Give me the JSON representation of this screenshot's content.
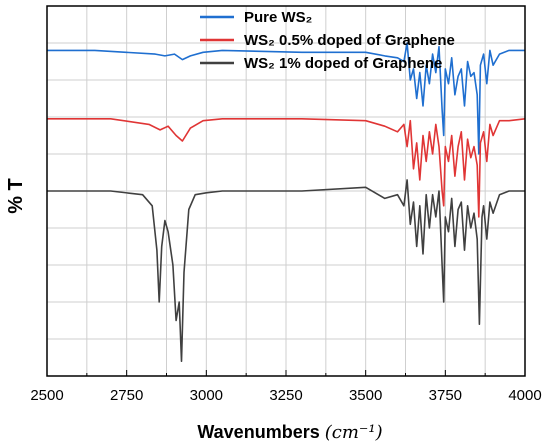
{
  "chart_data": {
    "type": "line",
    "xlabel": "Wavenumbers",
    "xlabel_unit": "(cm⁻¹)",
    "ylabel": "% T",
    "xlim": [
      2500,
      4000
    ],
    "xticks": [
      2500,
      2750,
      3000,
      3250,
      3500,
      3750,
      4000
    ],
    "ylim": [
      0,
      10
    ],
    "grid": true,
    "legend": "top-right",
    "y_tick_labels_shown": false,
    "series": [
      {
        "name": "Pure WS₂",
        "color": "#1f6fd0",
        "x": [
          2500,
          2650,
          2840,
          2870,
          2900,
          2925,
          2950,
          2990,
          3050,
          3300,
          3500,
          3560,
          3600,
          3620,
          3630,
          3640,
          3650,
          3660,
          3670,
          3680,
          3690,
          3700,
          3710,
          3720,
          3730,
          3740,
          3745,
          3750,
          3760,
          3770,
          3780,
          3790,
          3800,
          3810,
          3820,
          3830,
          3840,
          3850,
          3855,
          3860,
          3870,
          3880,
          3890,
          3900,
          3920,
          3950,
          4000
        ],
        "y": [
          8.8,
          8.8,
          8.7,
          8.65,
          8.7,
          8.55,
          8.65,
          8.75,
          8.8,
          8.75,
          8.75,
          8.65,
          8.6,
          8.5,
          9.0,
          8.0,
          8.3,
          7.5,
          8.2,
          7.3,
          8.4,
          7.9,
          8.7,
          8.2,
          8.9,
          7.2,
          6.5,
          8.3,
          7.9,
          8.6,
          7.6,
          8.1,
          8.3,
          7.3,
          8.5,
          8.1,
          8.2,
          7.6,
          6.0,
          8.4,
          8.7,
          7.9,
          8.8,
          8.4,
          8.7,
          8.8,
          8.8
        ]
      },
      {
        "name": "WS₂ 0.5% doped  of Graphene",
        "color": "#e03535",
        "x": [
          2500,
          2700,
          2820,
          2855,
          2880,
          2905,
          2925,
          2950,
          2990,
          3050,
          3300,
          3500,
          3560,
          3600,
          3620,
          3630,
          3640,
          3650,
          3660,
          3670,
          3680,
          3690,
          3700,
          3710,
          3720,
          3730,
          3740,
          3745,
          3750,
          3760,
          3770,
          3780,
          3790,
          3800,
          3810,
          3820,
          3830,
          3840,
          3850,
          3855,
          3860,
          3870,
          3880,
          3890,
          3900,
          3920,
          3950,
          4000
        ],
        "y": [
          6.95,
          6.95,
          6.8,
          6.65,
          6.75,
          6.5,
          6.35,
          6.7,
          6.9,
          6.95,
          6.95,
          6.9,
          6.75,
          6.6,
          6.8,
          6.2,
          6.9,
          5.6,
          6.3,
          5.3,
          6.5,
          5.8,
          6.6,
          6.0,
          6.8,
          6.2,
          5.0,
          4.6,
          6.2,
          5.8,
          6.5,
          5.4,
          6.2,
          6.6,
          5.3,
          6.4,
          5.9,
          6.2,
          5.7,
          4.3,
          6.3,
          6.6,
          5.8,
          6.8,
          6.5,
          6.9,
          6.9,
          6.95
        ]
      },
      {
        "name": "WS₂ 1% doped  of Graphene",
        "color": "#404040",
        "x": [
          2500,
          2700,
          2800,
          2830,
          2845,
          2852,
          2860,
          2870,
          2880,
          2895,
          2905,
          2915,
          2922,
          2930,
          2945,
          2965,
          3000,
          3050,
          3300,
          3500,
          3560,
          3600,
          3620,
          3630,
          3640,
          3650,
          3660,
          3670,
          3680,
          3690,
          3700,
          3710,
          3720,
          3730,
          3740,
          3745,
          3750,
          3760,
          3770,
          3780,
          3790,
          3800,
          3810,
          3820,
          3830,
          3840,
          3850,
          3857,
          3865,
          3870,
          3880,
          3890,
          3900,
          3920,
          3950,
          4000
        ],
        "y": [
          5.0,
          5.0,
          4.9,
          4.6,
          3.4,
          2.0,
          3.5,
          4.2,
          3.9,
          3.0,
          1.5,
          2.0,
          0.4,
          2.8,
          4.5,
          4.9,
          4.95,
          5.0,
          5.0,
          5.1,
          4.8,
          4.9,
          4.6,
          5.3,
          4.1,
          4.7,
          3.5,
          4.6,
          3.3,
          4.9,
          4.0,
          4.9,
          4.3,
          5.0,
          3.0,
          2.0,
          4.3,
          3.9,
          4.8,
          3.5,
          4.5,
          4.7,
          3.4,
          4.6,
          4.0,
          4.4,
          3.7,
          1.4,
          4.3,
          4.6,
          3.7,
          4.7,
          4.4,
          4.9,
          5.0,
          5.0
        ]
      }
    ]
  }
}
